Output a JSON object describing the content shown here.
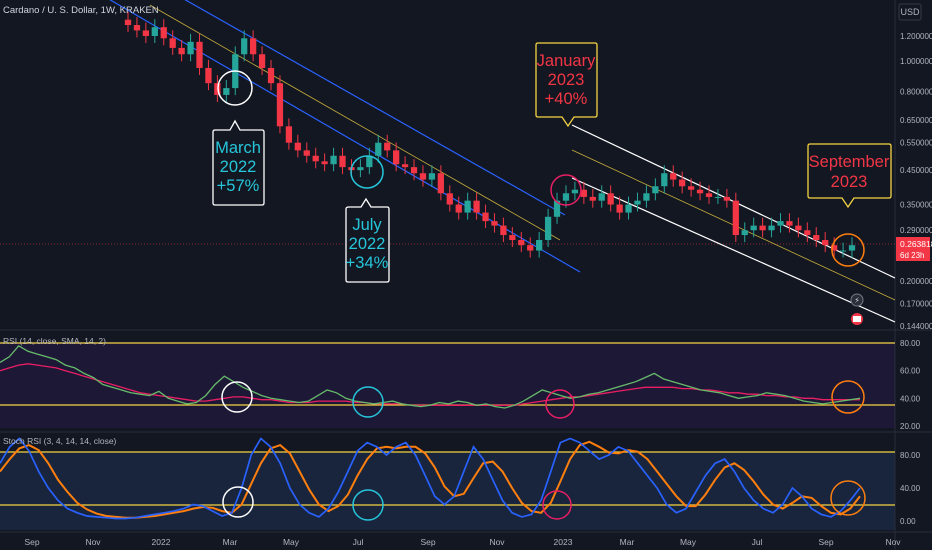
{
  "header": {
    "symbol": "Cardano / U. S. Dollar, 1W, KRAKEN",
    "currency": "USD"
  },
  "price_axis": {
    "ticks": [
      "1.200000",
      "1.000000",
      "0.800000",
      "0.650000",
      "0.550000",
      "0.450000",
      "0.350000",
      "0.290000",
      "0.200000",
      "0.170000",
      "0.144000"
    ],
    "current_price": "0.263818",
    "countdown": "6d 23h"
  },
  "time_axis": {
    "labels": [
      "Sep",
      "Nov",
      "2022",
      "Mar",
      "May",
      "Jul",
      "Sep",
      "Nov",
      "2023",
      "Mar",
      "May",
      "Jul",
      "Sep",
      "Nov"
    ]
  },
  "annotations": [
    {
      "id": "march",
      "lines": [
        "March",
        "2022",
        "+57%"
      ],
      "color": "#26c6da",
      "border": "#ffffff"
    },
    {
      "id": "july",
      "lines": [
        "July",
        "2022",
        "+34%"
      ],
      "color": "#26c6da",
      "border": "#ffffff"
    },
    {
      "id": "january",
      "lines": [
        "January",
        "2023",
        "+40%"
      ],
      "color": "#f23645",
      "border": "#f5d442"
    },
    {
      "id": "september",
      "lines": [
        "September",
        "2023"
      ],
      "color": "#f23645",
      "border": "#f5d442"
    }
  ],
  "rsi": {
    "label": "RSI (14, close, SMA, 14, 2)",
    "ticks": [
      "80.00",
      "60.00",
      "40.00",
      "20.00"
    ]
  },
  "stoch": {
    "label": "Stoch RSI (3, 4, 14, 14, close)",
    "ticks": [
      "80.00",
      "40.00",
      "0.00"
    ]
  },
  "colors": {
    "up": "#26a69a",
    "down": "#f23645",
    "channel_blue": "#2962ff",
    "channel_white": "#ffffff",
    "mid_line": "#f5d442",
    "rsi_line": "#66bb6a",
    "rsi_ma": "#e91e63",
    "stoch_k": "#2962ff",
    "stoch_d": "#ff7f0e",
    "band": "#f5d442"
  },
  "chart_data": {
    "type": "candlestick",
    "title": "Cardano / U. S. Dollar, 1W, KRAKEN",
    "y_scale": "log",
    "ylim": [
      0.144,
      1.2
    ],
    "x_range": [
      "2021-09",
      "2023-11"
    ],
    "approx_weekly_close": [
      1.3,
      1.25,
      1.2,
      1.28,
      1.18,
      1.1,
      1.05,
      1.15,
      0.95,
      0.85,
      0.78,
      0.82,
      1.05,
      1.18,
      1.05,
      0.95,
      0.85,
      0.62,
      0.55,
      0.52,
      0.5,
      0.48,
      0.47,
      0.5,
      0.46,
      0.45,
      0.46,
      0.5,
      0.55,
      0.52,
      0.47,
      0.46,
      0.44,
      0.42,
      0.44,
      0.38,
      0.35,
      0.33,
      0.36,
      0.33,
      0.31,
      0.3,
      0.28,
      0.27,
      0.26,
      0.25,
      0.27,
      0.32,
      0.36,
      0.38,
      0.39,
      0.37,
      0.36,
      0.38,
      0.35,
      0.33,
      0.35,
      0.36,
      0.38,
      0.4,
      0.44,
      0.42,
      0.4,
      0.39,
      0.38,
      0.37,
      0.37,
      0.36,
      0.28,
      0.29,
      0.3,
      0.29,
      0.3,
      0.31,
      0.3,
      0.29,
      0.28,
      0.27,
      0.26,
      0.25,
      0.25,
      0.26
    ],
    "annotated_rallies": [
      {
        "period": "March 2022",
        "change": "+57%"
      },
      {
        "period": "July 2022",
        "change": "+34%"
      },
      {
        "period": "January 2023",
        "change": "+40%"
      }
    ]
  }
}
